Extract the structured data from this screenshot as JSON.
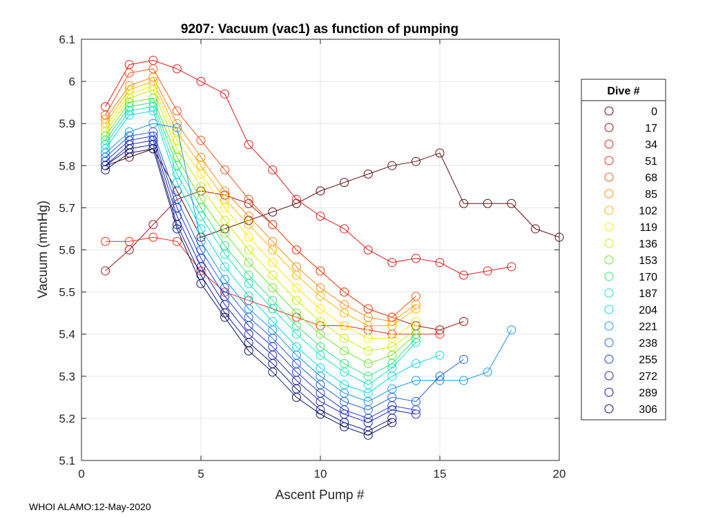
{
  "chart_data": {
    "type": "line",
    "title": "9207: Vacuum (vac1) as function of pumping",
    "xlabel": "Ascent Pump #",
    "ylabel": "Vacuum (mmHg)",
    "xlim": [
      0,
      20
    ],
    "ylim": [
      5.1,
      6.1
    ],
    "xticks": [
      0,
      5,
      10,
      15,
      20
    ],
    "yticks": [
      5.1,
      5.2,
      5.3,
      5.4,
      5.5,
      5.6,
      5.7,
      5.8,
      5.9,
      6.0,
      6.1
    ],
    "ytick_labels": [
      "5.1",
      "5.2",
      "5.3",
      "5.4",
      "5.5",
      "5.6",
      "5.7",
      "5.8",
      "5.9",
      "6",
      "6.1"
    ],
    "grid": true,
    "marker": "open-circle",
    "legend_title": "Dive #",
    "legend_position": "outside-right",
    "series": [
      {
        "name": "0",
        "color": "#5a0a0a",
        "x": [
          1,
          2,
          3,
          4,
          5,
          6,
          7,
          8,
          9,
          10,
          11,
          12,
          13,
          14,
          15,
          16,
          17,
          18,
          19,
          20
        ],
        "y": [
          5.8,
          5.82,
          5.84,
          5.74,
          5.63,
          5.65,
          5.67,
          5.69,
          5.71,
          5.74,
          5.76,
          5.78,
          5.8,
          5.81,
          5.83,
          5.71,
          5.71,
          5.71,
          5.65,
          5.63
        ]
      },
      {
        "name": "17",
        "color": "#a01010",
        "x": [
          1,
          2,
          3,
          4,
          5,
          6,
          7,
          8,
          9,
          10,
          11,
          12,
          13,
          14,
          15,
          16
        ],
        "y": [
          5.55,
          5.6,
          5.66,
          5.72,
          5.74,
          5.73,
          5.71,
          5.66,
          5.6,
          5.55,
          5.5,
          5.46,
          5.44,
          5.42,
          5.41,
          5.43
        ]
      },
      {
        "name": "34",
        "color": "#e01a1a",
        "x": [
          1,
          2,
          3,
          4,
          5,
          6,
          7,
          8,
          9,
          10,
          11,
          12,
          13,
          14,
          15,
          16,
          17,
          18
        ],
        "y": [
          5.94,
          6.04,
          6.05,
          6.03,
          6.0,
          5.97,
          5.85,
          5.79,
          5.72,
          5.68,
          5.65,
          5.6,
          5.57,
          5.58,
          5.57,
          5.54,
          5.55,
          5.56
        ]
      },
      {
        "name": "51",
        "color": "#ee2a1a",
        "x": [
          1,
          2,
          3,
          4,
          5,
          6,
          7,
          8,
          9,
          10,
          11,
          12,
          13,
          14,
          15
        ],
        "y": [
          5.62,
          5.62,
          5.63,
          5.62,
          5.55,
          5.5,
          5.48,
          5.46,
          5.44,
          5.42,
          5.42,
          5.41,
          5.4,
          5.4,
          5.4
        ]
      },
      {
        "name": "68",
        "color": "#f4501a",
        "x": [
          1,
          2,
          3,
          4,
          5,
          6,
          7,
          8,
          9,
          10,
          11,
          12,
          13,
          14
        ],
        "y": [
          5.92,
          6.02,
          6.03,
          5.93,
          5.86,
          5.79,
          5.72,
          5.66,
          5.6,
          5.55,
          5.5,
          5.46,
          5.44,
          5.49
        ]
      },
      {
        "name": "85",
        "color": "#fa8a14",
        "x": [
          1,
          2,
          3,
          4,
          5,
          6,
          7,
          8,
          9,
          10,
          11,
          12,
          13,
          14
        ],
        "y": [
          5.91,
          5.99,
          6.01,
          5.9,
          5.82,
          5.74,
          5.68,
          5.62,
          5.56,
          5.51,
          5.47,
          5.44,
          5.43,
          5.47
        ]
      },
      {
        "name": "102",
        "color": "#ffb400",
        "x": [
          1,
          2,
          3,
          4,
          5,
          6,
          7,
          8,
          9,
          10,
          11,
          12,
          13,
          14
        ],
        "y": [
          5.9,
          5.98,
          6.0,
          5.88,
          5.8,
          5.72,
          5.66,
          5.6,
          5.54,
          5.49,
          5.45,
          5.42,
          5.42,
          5.46
        ]
      },
      {
        "name": "119",
        "color": "#ffe600",
        "x": [
          1,
          2,
          3,
          4,
          5,
          6,
          7,
          8,
          9,
          10,
          11,
          12,
          13,
          14
        ],
        "y": [
          5.89,
          5.97,
          5.99,
          5.86,
          5.78,
          5.7,
          5.63,
          5.57,
          5.51,
          5.46,
          5.42,
          5.39,
          5.39,
          5.43
        ]
      },
      {
        "name": "136",
        "color": "#c8f000",
        "x": [
          1,
          2,
          3,
          4,
          5,
          6,
          7,
          8,
          9,
          10,
          11,
          12,
          13,
          14
        ],
        "y": [
          5.88,
          5.96,
          5.98,
          5.84,
          5.75,
          5.67,
          5.6,
          5.54,
          5.48,
          5.43,
          5.39,
          5.36,
          5.37,
          5.41
        ]
      },
      {
        "name": "153",
        "color": "#6ee62a",
        "x": [
          1,
          2,
          3,
          4,
          5,
          6,
          7,
          8,
          9,
          10,
          11,
          12,
          13,
          14
        ],
        "y": [
          5.87,
          5.95,
          5.96,
          5.82,
          5.72,
          5.64,
          5.57,
          5.51,
          5.45,
          5.4,
          5.36,
          5.33,
          5.35,
          5.4
        ]
      },
      {
        "name": "170",
        "color": "#2ee878",
        "x": [
          1,
          2,
          3,
          4,
          5,
          6,
          7,
          8,
          9,
          10,
          11,
          12,
          13,
          14
        ],
        "y": [
          5.86,
          5.94,
          5.95,
          5.8,
          5.7,
          5.61,
          5.54,
          5.48,
          5.42,
          5.37,
          5.33,
          5.3,
          5.33,
          5.39
        ]
      },
      {
        "name": "187",
        "color": "#14e6c0",
        "x": [
          1,
          2,
          3,
          4,
          5,
          6,
          7,
          8,
          9,
          10,
          11,
          12,
          13,
          14
        ],
        "y": [
          5.85,
          5.93,
          5.94,
          5.78,
          5.68,
          5.59,
          5.52,
          5.46,
          5.4,
          5.35,
          5.31,
          5.28,
          5.32,
          5.38
        ]
      },
      {
        "name": "204",
        "color": "#0ad8f0",
        "x": [
          1,
          2,
          3,
          4,
          5,
          6,
          7,
          8,
          9,
          10,
          11,
          12,
          13,
          14,
          15
        ],
        "y": [
          5.84,
          5.92,
          5.93,
          5.76,
          5.65,
          5.56,
          5.49,
          5.43,
          5.37,
          5.32,
          5.28,
          5.26,
          5.3,
          5.33,
          5.35
        ]
      },
      {
        "name": "221",
        "color": "#1496f0",
        "x": [
          1,
          2,
          3,
          4,
          5,
          6,
          7,
          8,
          9,
          10,
          11,
          12,
          13,
          14,
          15,
          16,
          17,
          18
        ],
        "y": [
          5.83,
          5.88,
          5.9,
          5.89,
          5.62,
          5.53,
          5.46,
          5.41,
          5.35,
          5.3,
          5.26,
          5.24,
          5.27,
          5.29,
          5.29,
          5.29,
          5.31,
          5.41
        ]
      },
      {
        "name": "238",
        "color": "#1e64e6",
        "x": [
          1,
          2,
          3,
          4,
          5,
          6,
          7,
          8,
          9,
          10,
          11,
          12,
          13,
          14,
          15,
          16
        ],
        "y": [
          5.82,
          5.87,
          5.88,
          5.72,
          5.6,
          5.51,
          5.44,
          5.39,
          5.33,
          5.28,
          5.24,
          5.22,
          5.25,
          5.24,
          5.3,
          5.34
        ]
      },
      {
        "name": "255",
        "color": "#1e3cdc",
        "x": [
          1,
          2,
          3,
          4,
          5,
          6,
          7,
          8,
          9,
          10,
          11,
          12,
          13,
          14
        ],
        "y": [
          5.81,
          5.86,
          5.87,
          5.7,
          5.58,
          5.49,
          5.42,
          5.37,
          5.31,
          5.26,
          5.22,
          5.2,
          5.23,
          5.22
        ]
      },
      {
        "name": "272",
        "color": "#1e28b4",
        "x": [
          1,
          2,
          3,
          4,
          5,
          6,
          7,
          8,
          9,
          10,
          11,
          12,
          13,
          14
        ],
        "y": [
          5.8,
          5.85,
          5.86,
          5.68,
          5.56,
          5.47,
          5.4,
          5.35,
          5.29,
          5.24,
          5.21,
          5.19,
          5.22,
          5.21
        ]
      },
      {
        "name": "289",
        "color": "#141e8c",
        "x": [
          1,
          2,
          3,
          4,
          5,
          6,
          7,
          8,
          9,
          10,
          11,
          12,
          13
        ],
        "y": [
          5.8,
          5.84,
          5.85,
          5.66,
          5.54,
          5.45,
          5.38,
          5.33,
          5.27,
          5.22,
          5.19,
          5.17,
          5.2
        ]
      },
      {
        "name": "306",
        "color": "#0a1464",
        "x": [
          1,
          2,
          3,
          4,
          5,
          6,
          7,
          8,
          9,
          10,
          11,
          12,
          13
        ],
        "y": [
          5.79,
          5.83,
          5.84,
          5.65,
          5.52,
          5.44,
          5.36,
          5.31,
          5.25,
          5.21,
          5.18,
          5.16,
          5.19
        ]
      }
    ]
  },
  "footer": "WHOI ALAMO:12-May-2020"
}
